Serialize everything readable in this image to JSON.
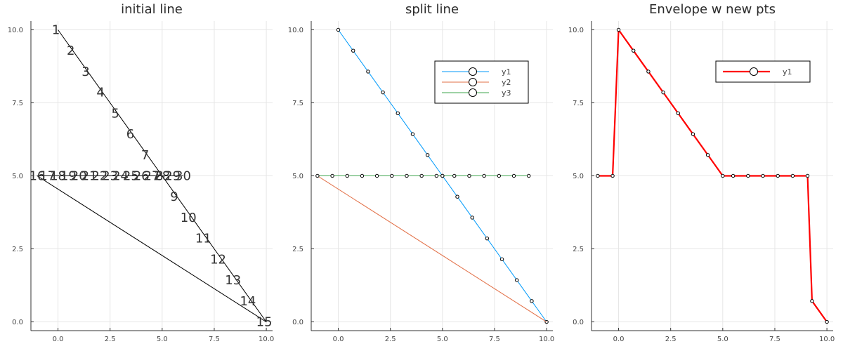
{
  "chart_data": [
    {
      "type": "line",
      "title": "initial line",
      "xlim": [
        -1.3,
        10.3
      ],
      "ylim": [
        -0.3,
        10.3
      ],
      "xticks": [
        0,
        2.5,
        5,
        7.5,
        10
      ],
      "yticks": [
        0,
        2.5,
        5,
        7.5,
        10
      ],
      "xtick_labels": [
        "0.0",
        "2.5",
        "5.0",
        "7.5",
        "10.0"
      ],
      "ytick_labels": [
        "0.0",
        "2.5",
        "5.0",
        "7.5",
        "10.0"
      ],
      "grid": true,
      "legend": false,
      "series": [
        {
          "color": "#000000",
          "x": [
            0,
            0.714,
            1.429,
            2.143,
            2.857,
            3.571,
            4.286,
            5.0,
            5.714,
            6.429,
            7.143,
            7.857,
            8.571,
            9.286,
            10.0,
            -1.0,
            -0.5,
            0.0,
            0.5,
            1.0,
            1.5,
            2.0,
            2.5,
            3.0,
            3.5,
            4.0,
            4.5,
            5.0,
            5.5,
            6.0
          ],
          "y": [
            10.0,
            9.286,
            8.571,
            7.857,
            7.143,
            6.429,
            5.714,
            5.0,
            4.286,
            3.571,
            2.857,
            2.143,
            1.429,
            0.714,
            0.0,
            5.0,
            5.0,
            5.0,
            5.0,
            5.0,
            5.0,
            5.0,
            5.0,
            5.0,
            5.0,
            5.0,
            5.0,
            5.0,
            5.0,
            5.0
          ]
        }
      ],
      "point_labels": [
        "1",
        "2",
        "3",
        "4",
        "5",
        "6",
        "7",
        "8",
        "9",
        "10",
        "11",
        "12",
        "13",
        "14",
        "15",
        "16",
        "17",
        "18",
        "19",
        "20",
        "21",
        "22",
        "23",
        "24",
        "25",
        "26",
        "27",
        "28",
        "29",
        "30"
      ]
    },
    {
      "type": "line",
      "title": "split line",
      "xlim": [
        -1.3,
        10.3
      ],
      "ylim": [
        -0.3,
        10.3
      ],
      "xticks": [
        0,
        2.5,
        5,
        7.5,
        10
      ],
      "yticks": [
        0,
        2.5,
        5,
        7.5,
        10
      ],
      "xtick_labels": [
        "0.0",
        "2.5",
        "5.0",
        "7.5",
        "10.0"
      ],
      "ytick_labels": [
        "0.0",
        "2.5",
        "5.0",
        "7.5",
        "10.0"
      ],
      "grid": true,
      "legend": "top-right",
      "series": [
        {
          "name": "y1",
          "color": "#009AFA",
          "markers": true,
          "x": [
            0,
            0.714,
            1.429,
            2.143,
            2.857,
            3.571,
            4.286,
            5.0,
            5.714,
            6.429,
            7.143,
            7.857,
            8.571,
            9.286,
            10.0
          ],
          "y": [
            10.0,
            9.286,
            8.571,
            7.857,
            7.143,
            6.429,
            5.714,
            5.0,
            4.286,
            3.571,
            2.857,
            2.143,
            1.429,
            0.714,
            0.0
          ]
        },
        {
          "name": "y2",
          "color": "#E26F46",
          "markers": false,
          "x": [
            -1.0,
            10.0
          ],
          "y": [
            5.0,
            0.0
          ]
        },
        {
          "name": "y3",
          "color": "#3DA44D",
          "markers": true,
          "x": [
            -1.0,
            -0.286,
            0.429,
            1.143,
            1.857,
            2.571,
            3.286,
            4.0,
            4.714,
            5.0,
            5.571,
            6.286,
            7.0,
            7.714,
            8.429,
            9.143
          ],
          "y": [
            5.0,
            5.0,
            5.0,
            5.0,
            5.0,
            5.0,
            5.0,
            5.0,
            5.0,
            5.0,
            5.0,
            5.0,
            5.0,
            5.0,
            5.0,
            5.0
          ]
        }
      ]
    },
    {
      "type": "line",
      "title": "Envelope w new pts",
      "xlim": [
        -1.3,
        10.3
      ],
      "ylim": [
        -0.3,
        10.3
      ],
      "xticks": [
        0,
        2.5,
        5,
        7.5,
        10
      ],
      "yticks": [
        0,
        2.5,
        5,
        7.5,
        10
      ],
      "xtick_labels": [
        "0.0",
        "2.5",
        "5.0",
        "7.5",
        "10.0"
      ],
      "ytick_labels": [
        "0.0",
        "2.5",
        "5.0",
        "7.5",
        "10.0"
      ],
      "grid": true,
      "legend": "top-right",
      "series": [
        {
          "name": "y1",
          "color": "#FF0000",
          "markers": true,
          "x": [
            -1.0,
            -0.286,
            0.0,
            0.714,
            1.429,
            2.143,
            2.857,
            3.571,
            4.286,
            5.0,
            5.5,
            6.214,
            6.929,
            7.643,
            8.357,
            9.071,
            9.286,
            10.0
          ],
          "y": [
            5.0,
            5.0,
            10.0,
            9.286,
            8.571,
            7.857,
            7.143,
            6.429,
            5.714,
            5.0,
            5.0,
            5.0,
            5.0,
            5.0,
            5.0,
            5.0,
            0.714,
            0.0
          ]
        }
      ]
    }
  ]
}
